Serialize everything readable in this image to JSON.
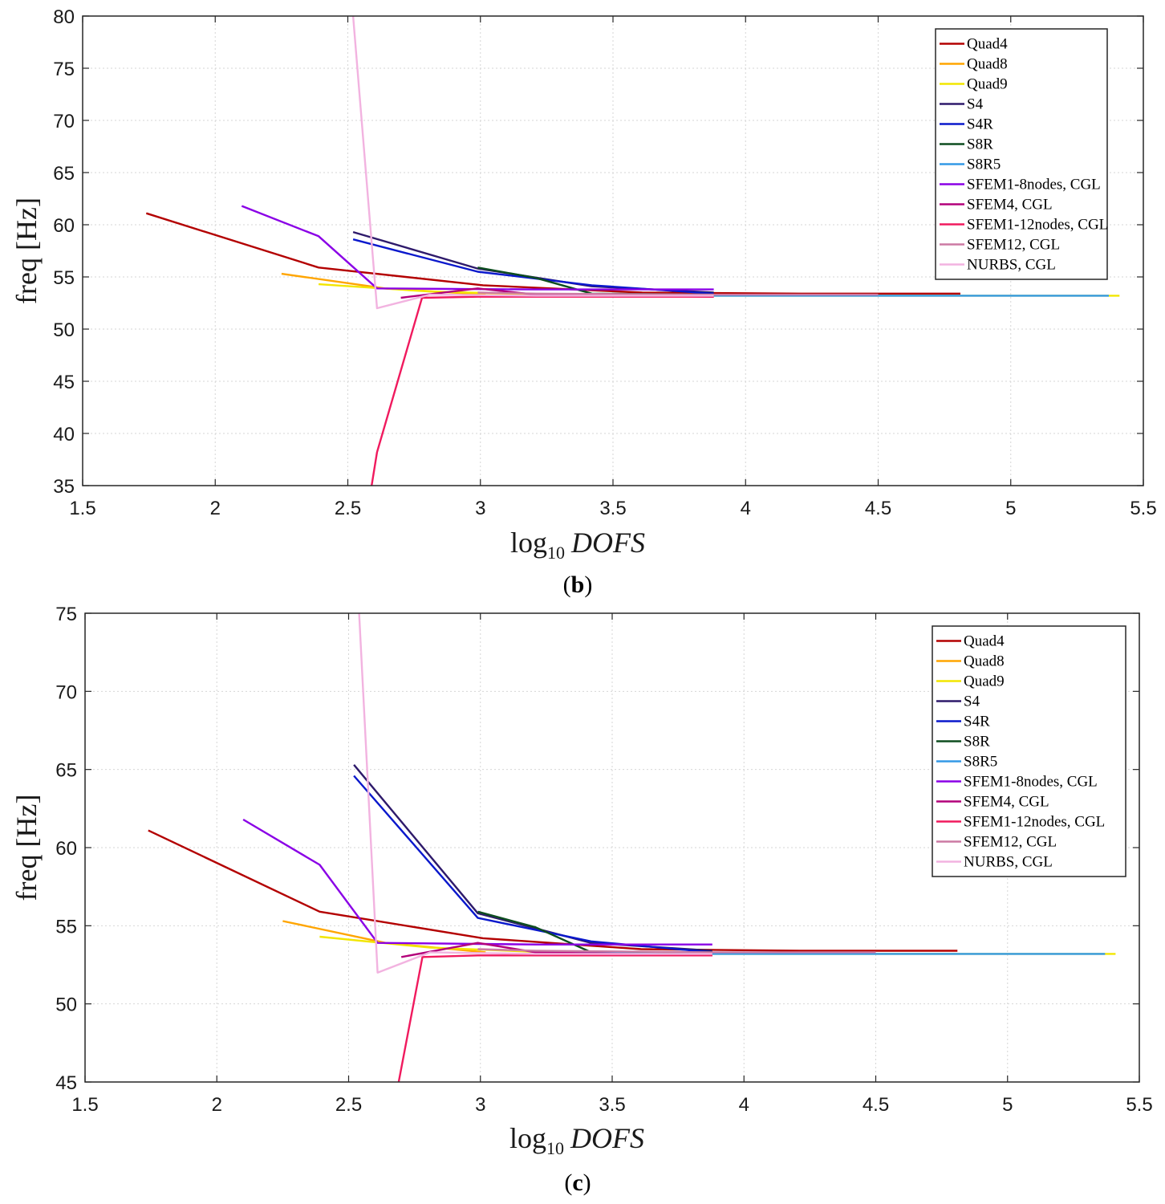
{
  "chart_data": [
    {
      "id": "b",
      "type": "line",
      "title": "",
      "panel_label": "b",
      "xlabel_func": "log",
      "xlabel_sub": "10",
      "xlabel_var": "DOFS",
      "ylabel": "freq [Hz]",
      "xlim": [
        1.5,
        5.5
      ],
      "ylim": [
        35,
        80
      ],
      "xticks": [
        1.5,
        2,
        2.5,
        3,
        3.5,
        4,
        4.5,
        5,
        5.5
      ],
      "xtick_labels": [
        "1.5",
        "2",
        "2.5",
        "3",
        "3.5",
        "4",
        "4.5",
        "5",
        "5.5"
      ],
      "yticks": [
        35,
        40,
        45,
        50,
        55,
        60,
        65,
        70,
        75,
        80
      ],
      "ytick_labels": [
        "35",
        "40",
        "45",
        "50",
        "55",
        "60",
        "65",
        "70",
        "75",
        "80"
      ],
      "grid": true,
      "legend_position": "top-right",
      "series": [
        {
          "name": "Quad4",
          "color": "#b30000",
          "x": [
            1.74,
            2.39,
            3.01,
            3.61,
            4.21,
            4.81
          ],
          "y": [
            61.1,
            55.9,
            54.2,
            53.5,
            53.4,
            53.4
          ]
        },
        {
          "name": "Quad8",
          "color": "#ffa500",
          "x": [
            2.25,
            2.64,
            3.02
          ],
          "y": [
            55.3,
            53.9,
            53.3
          ]
        },
        {
          "name": "Quad9",
          "color": "#f2e600",
          "x": [
            2.39,
            2.81,
            3.25,
            3.83,
            4.41,
            5.0,
            5.41
          ],
          "y": [
            54.3,
            53.6,
            53.3,
            53.2,
            53.2,
            53.2,
            53.2
          ]
        },
        {
          "name": "S4",
          "color": "#2e1a6b",
          "x": [
            2.52,
            2.99,
            3.42,
            3.88
          ],
          "y": [
            59.3,
            55.8,
            54.1,
            53.5
          ]
        },
        {
          "name": "S4R",
          "color": "#0a18cc",
          "x": [
            2.52,
            2.99,
            3.42,
            3.88
          ],
          "y": [
            58.6,
            55.5,
            54.2,
            53.4
          ]
        },
        {
          "name": "S8R",
          "color": "#0d4d1f",
          "x": [
            2.99,
            3.21,
            3.42,
            3.88
          ],
          "y": [
            55.9,
            54.9,
            53.4,
            53.3
          ]
        },
        {
          "name": "S8R5",
          "color": "#3399e6",
          "x": [
            3.21,
            3.7,
            4.21,
            4.51,
            4.81,
            5.37
          ],
          "y": [
            53.3,
            53.2,
            53.2,
            53.2,
            53.2,
            53.2
          ]
        },
        {
          "name": "SFEM1-8nodes, CGL",
          "color": "#8a00e6",
          "x": [
            2.1,
            2.39,
            2.61,
            3.21,
            3.88
          ],
          "y": [
            61.8,
            58.9,
            53.9,
            53.8,
            53.8
          ]
        },
        {
          "name": "SFEM4, CGL",
          "color": "#b3007a",
          "x": [
            2.7,
            2.99,
            3.21,
            3.88
          ],
          "y": [
            53.0,
            53.9,
            53.3,
            53.1
          ]
        },
        {
          "name": "SFEM1-12nodes, CGL",
          "color": "#f01a5e",
          "x": [
            2.59,
            2.61,
            2.78,
            2.99,
            3.21,
            3.88
          ],
          "y": [
            35.0,
            38.2,
            53.0,
            53.1,
            53.1,
            53.1
          ]
        },
        {
          "name": "SFEM12, CGL",
          "color": "#cc7aa3",
          "x": [
            2.99,
            3.21,
            3.88,
            4.5
          ],
          "y": [
            53.5,
            53.4,
            53.3,
            53.3
          ]
        },
        {
          "name": "NURBS, CGL",
          "color": "#f2b3e0",
          "x": [
            2.52,
            2.61,
            2.81,
            3.21,
            3.88
          ],
          "y": [
            80.0,
            52.0,
            53.3,
            53.2,
            53.2
          ]
        }
      ]
    },
    {
      "id": "c",
      "type": "line",
      "title": "",
      "panel_label": "c",
      "xlabel_func": "log",
      "xlabel_sub": "10",
      "xlabel_var": "DOFS",
      "ylabel": "freq [Hz]",
      "xlim": [
        1.5,
        5.5
      ],
      "ylim": [
        45,
        75
      ],
      "xticks": [
        1.5,
        2,
        2.5,
        3,
        3.5,
        4,
        4.5,
        5,
        5.5
      ],
      "xtick_labels": [
        "1.5",
        "2",
        "2.5",
        "3",
        "3.5",
        "4",
        "4.5",
        "5",
        "5.5"
      ],
      "yticks": [
        45,
        50,
        55,
        60,
        65,
        70,
        75
      ],
      "ytick_labels": [
        "45",
        "50",
        "55",
        "60",
        "65",
        "70",
        "75"
      ],
      "grid": true,
      "legend_position": "top-right",
      "series": [
        {
          "name": "Quad4",
          "color": "#b30000",
          "x": [
            1.74,
            2.39,
            3.01,
            3.61,
            4.21,
            4.81
          ],
          "y": [
            61.1,
            55.9,
            54.2,
            53.5,
            53.4,
            53.4
          ]
        },
        {
          "name": "Quad8",
          "color": "#ffa500",
          "x": [
            2.25,
            2.64,
            3.02
          ],
          "y": [
            55.3,
            53.9,
            53.3
          ]
        },
        {
          "name": "Quad9",
          "color": "#f2e600",
          "x": [
            2.39,
            2.81,
            3.25,
            3.83,
            4.41,
            5.0,
            5.41
          ],
          "y": [
            54.3,
            53.6,
            53.3,
            53.2,
            53.2,
            53.2,
            53.2
          ]
        },
        {
          "name": "S4",
          "color": "#2e1a6b",
          "x": [
            2.52,
            2.99,
            3.42,
            3.88
          ],
          "y": [
            65.3,
            55.8,
            53.9,
            53.4
          ]
        },
        {
          "name": "S4R",
          "color": "#0a18cc",
          "x": [
            2.52,
            2.99,
            3.42,
            3.88
          ],
          "y": [
            64.6,
            55.5,
            54.0,
            53.3
          ]
        },
        {
          "name": "S8R",
          "color": "#0d4d1f",
          "x": [
            2.99,
            3.21,
            3.42,
            3.88
          ],
          "y": [
            55.9,
            54.9,
            53.3,
            53.3
          ]
        },
        {
          "name": "S8R5",
          "color": "#3399e6",
          "x": [
            3.21,
            3.7,
            4.21,
            4.51,
            4.81,
            5.37
          ],
          "y": [
            53.3,
            53.2,
            53.2,
            53.2,
            53.2,
            53.2
          ]
        },
        {
          "name": "SFEM1-8nodes, CGL",
          "color": "#8a00e6",
          "x": [
            2.1,
            2.39,
            2.61,
            3.21,
            3.88
          ],
          "y": [
            61.8,
            58.9,
            53.9,
            53.8,
            53.8
          ]
        },
        {
          "name": "SFEM4, CGL",
          "color": "#b3007a",
          "x": [
            2.7,
            2.99,
            3.21,
            3.88
          ],
          "y": [
            53.0,
            53.9,
            53.3,
            53.1
          ]
        },
        {
          "name": "SFEM1-12nodes, CGL",
          "color": "#f01a5e",
          "x": [
            2.69,
            2.78,
            2.99,
            3.21,
            3.88
          ],
          "y": [
            45.0,
            53.0,
            53.1,
            53.1,
            53.1
          ]
        },
        {
          "name": "SFEM12, CGL",
          "color": "#cc7aa3",
          "x": [
            2.99,
            3.21,
            3.88,
            4.5
          ],
          "y": [
            53.5,
            53.4,
            53.3,
            53.3
          ]
        },
        {
          "name": "NURBS, CGL",
          "color": "#f2b3e0",
          "x": [
            2.54,
            2.61,
            2.81,
            3.21,
            3.88
          ],
          "y": [
            75.0,
            52.0,
            53.3,
            53.2,
            53.2
          ]
        }
      ]
    }
  ]
}
